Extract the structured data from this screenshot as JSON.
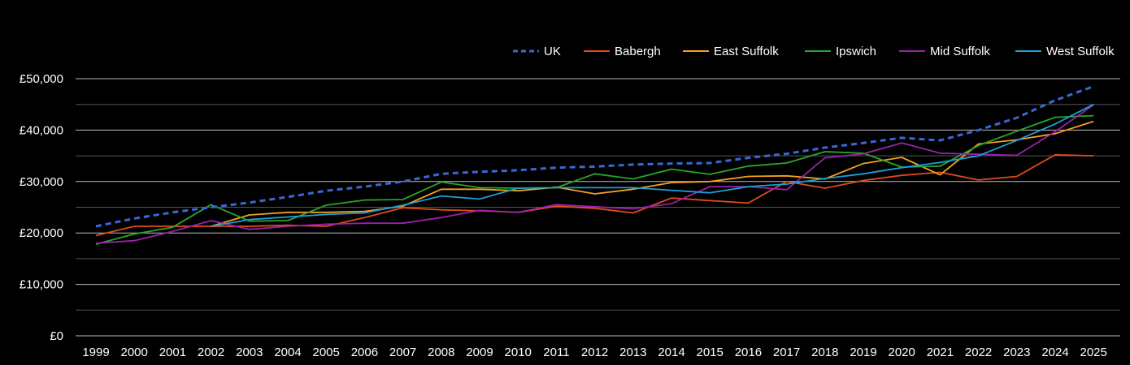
{
  "chart_data": {
    "type": "line",
    "title": "",
    "xlabel": "",
    "ylabel": "",
    "ylim": [
      0,
      50000
    ],
    "y_ticks": [
      0,
      10000,
      20000,
      30000,
      40000,
      50000
    ],
    "y_tick_labels": [
      "£0",
      "£10,000",
      "£20,000",
      "£30,000",
      "£40,000",
      "£50,000"
    ],
    "grid": true,
    "legend_position": "top-right",
    "background": "#000000",
    "x": [
      "1999",
      "2000",
      "2001",
      "2002",
      "2003",
      "2004",
      "2005",
      "2006",
      "2007",
      "2008",
      "2009",
      "2010",
      "2011",
      "2012",
      "2013",
      "2014",
      "2015",
      "2016",
      "2017",
      "2018",
      "2019",
      "2020",
      "2021",
      "2022",
      "2023",
      "2024",
      "2025"
    ],
    "series": [
      {
        "name": "UK",
        "color": "#3b67d6",
        "dashed": true,
        "values": [
          21300,
          22800,
          24000,
          25000,
          25900,
          27000,
          28200,
          29000,
          30000,
          31500,
          31900,
          32200,
          32700,
          32900,
          33300,
          33500,
          33600,
          34600,
          35400,
          36600,
          37500,
          38500,
          38000,
          40000,
          42400,
          45800,
          48500
        ]
      },
      {
        "name": "Babergh",
        "color": "#e04b1c",
        "dashed": false,
        "values": [
          19500,
          21300,
          21300,
          21300,
          21300,
          21500,
          21300,
          23000,
          24900,
          24500,
          24300,
          24000,
          25200,
          24800,
          23900,
          26800,
          26300,
          25800,
          30000,
          28700,
          30200,
          31200,
          31800,
          30300,
          31000,
          35200,
          35000
        ]
      },
      {
        "name": "East Suffolk",
        "color": "#f5a020",
        "dashed": false,
        "values": [
          null,
          null,
          null,
          21300,
          23500,
          24000,
          24000,
          24200,
          25200,
          28500,
          28500,
          28200,
          28900,
          27600,
          28500,
          29800,
          30000,
          31000,
          31100,
          30500,
          33500,
          34700,
          31300,
          37300,
          38100,
          39300,
          41700
        ]
      },
      {
        "name": "Ipswich",
        "color": "#2aa52a",
        "dashed": false,
        "values": [
          17800,
          19800,
          21100,
          25500,
          22300,
          22400,
          25400,
          26400,
          26500,
          29900,
          28800,
          28700,
          28800,
          31500,
          30500,
          32400,
          31400,
          33000,
          33600,
          35800,
          35500,
          32800,
          33000,
          37000,
          39800,
          42500,
          42800
        ]
      },
      {
        "name": "Mid Suffolk",
        "color": "#9b22a8",
        "dashed": false,
        "values": [
          18000,
          18500,
          20300,
          22400,
          20700,
          21300,
          21700,
          21900,
          21900,
          23000,
          24400,
          24000,
          25500,
          25100,
          24700,
          25700,
          29000,
          29000,
          28400,
          34600,
          35400,
          37500,
          35500,
          35300,
          35100,
          39700,
          44900
        ]
      },
      {
        "name": "West Suffolk",
        "color": "#1a9fd8",
        "dashed": false,
        "values": [
          null,
          null,
          null,
          21300,
          22600,
          23100,
          23600,
          23900,
          25400,
          27200,
          26600,
          28700,
          28800,
          28800,
          28800,
          28300,
          27800,
          29000,
          29500,
          30600,
          31500,
          32700,
          33700,
          35000,
          38000,
          41200,
          45000
        ]
      }
    ]
  }
}
